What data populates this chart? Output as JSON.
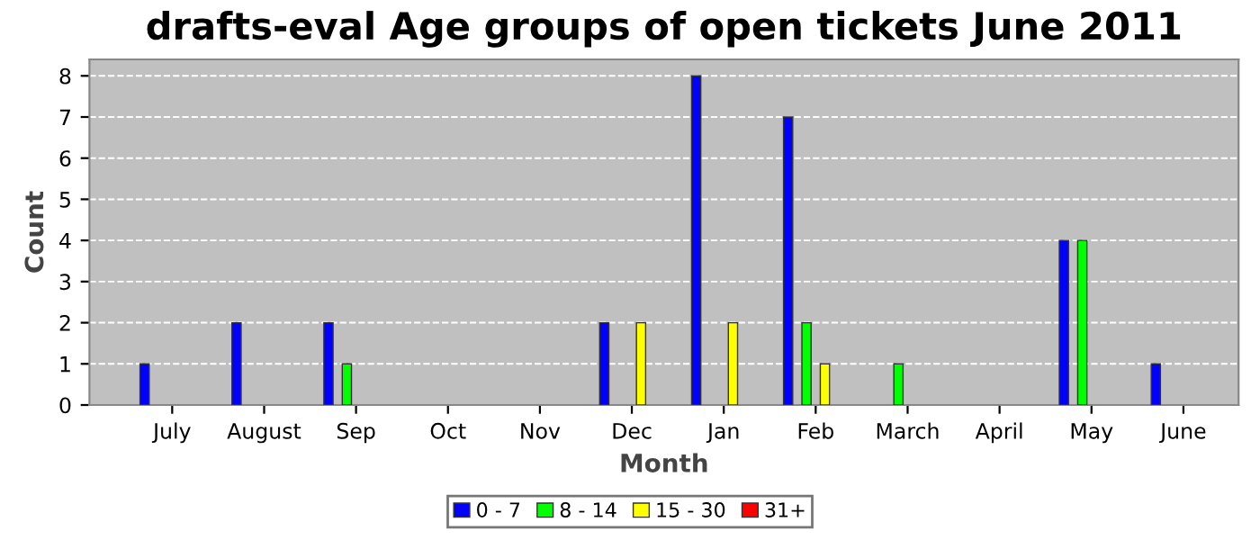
{
  "chart_data": {
    "type": "bar",
    "title": "drafts-eval Age groups of open tickets June 2011",
    "xlabel": "Month",
    "ylabel": "Count",
    "categories": [
      "July",
      "August",
      "Sep",
      "Oct",
      "Nov",
      "Dec",
      "Jan",
      "Feb",
      "March",
      "April",
      "May",
      "June"
    ],
    "series": [
      {
        "name": "0 - 7",
        "color": "#0000ff",
        "values": [
          1,
          2,
          2,
          null,
          null,
          2,
          8,
          7,
          null,
          null,
          4,
          1
        ]
      },
      {
        "name": "8 - 14",
        "color": "#00ff00",
        "values": [
          null,
          null,
          1,
          null,
          null,
          null,
          null,
          2,
          1,
          null,
          4,
          null
        ]
      },
      {
        "name": "15 - 30",
        "color": "#ffff00",
        "values": [
          null,
          null,
          null,
          null,
          null,
          2,
          2,
          1,
          null,
          null,
          null,
          null
        ]
      },
      {
        "name": "31+",
        "color": "#ff0000",
        "values": [
          null,
          null,
          null,
          null,
          null,
          null,
          null,
          null,
          null,
          null,
          null,
          null
        ]
      }
    ],
    "ylim": [
      0,
      8.4
    ],
    "yticks": [
      0,
      1,
      2,
      3,
      4,
      5,
      6,
      7,
      8
    ],
    "grid": "y",
    "legend": "bottom"
  }
}
